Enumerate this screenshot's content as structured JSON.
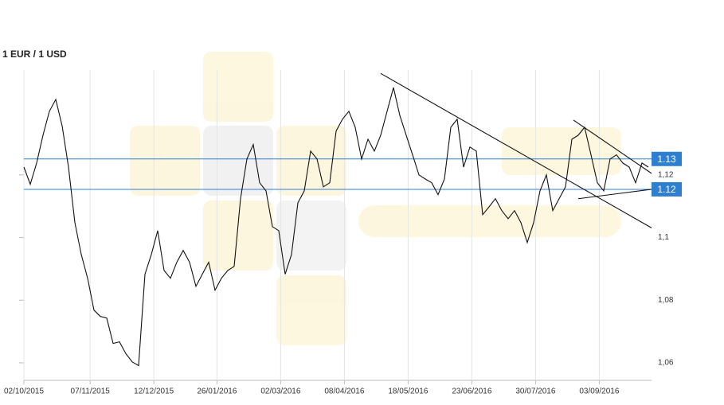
{
  "chart_data": {
    "type": "line",
    "title": "1 EUR / 1 USD",
    "xlim": [
      0,
      98.5
    ],
    "xticks": [
      {
        "value": 0,
        "label": "02/10/2015"
      },
      {
        "value": 10.4,
        "label": "07/11/2015"
      },
      {
        "value": 20.4,
        "label": "12/12/2015"
      },
      {
        "value": 30.3,
        "label": "26/01/2016"
      },
      {
        "value": 40.3,
        "label": "02/03/2016"
      },
      {
        "value": 50.3,
        "label": "08/04/2016"
      },
      {
        "value": 60.3,
        "label": "18/05/2016"
      },
      {
        "value": 70.3,
        "label": "23/06/2016"
      },
      {
        "value": 80.3,
        "label": "30/07/2016"
      },
      {
        "value": 90.3,
        "label": "03/09/2016"
      }
    ],
    "ylim": [
      1.0544,
      1.1535
    ],
    "yticks": [
      {
        "value": 1.06,
        "label": "1,06"
      },
      {
        "value": 1.08,
        "label": "1,08"
      },
      {
        "value": 1.1,
        "label": "1,1"
      },
      {
        "value": 1.12,
        "label": "1,12"
      }
    ],
    "grid": true,
    "series": [
      {
        "color": "#111111",
        "values": [
          1.1225,
          1.117,
          1.1238,
          1.1327,
          1.1403,
          1.1441,
          1.1357,
          1.1225,
          1.1048,
          1.0946,
          1.087,
          1.0768,
          1.0748,
          1.0743,
          1.0662,
          1.0667,
          1.0629,
          1.0603,
          1.0591,
          1.0883,
          1.0946,
          1.1022,
          1.0895,
          1.087,
          1.0921,
          1.0959,
          1.0921,
          1.0844,
          1.0883,
          1.0921,
          1.0832,
          1.087,
          1.0895,
          1.0908,
          1.1124,
          1.1251,
          1.1297,
          1.1175,
          1.1149,
          1.1035,
          1.1022,
          1.0883,
          1.0946,
          1.1111,
          1.1149,
          1.1276,
          1.1251,
          1.1162,
          1.1175,
          1.134,
          1.1378,
          1.1403,
          1.1352,
          1.1251,
          1.1314,
          1.1276,
          1.1327,
          1.1403,
          1.1479,
          1.139,
          1.1327,
          1.1264,
          1.12,
          1.1187,
          1.1175,
          1.1137,
          1.1187,
          1.1352,
          1.1378,
          1.1225,
          1.1289,
          1.1276,
          1.1073,
          1.1098,
          1.1124,
          1.1086,
          1.106,
          1.1086,
          1.1048,
          1.0984,
          1.1048,
          1.1149,
          1.12,
          1.1086,
          1.1124,
          1.1162,
          1.1314,
          1.1327,
          1.1352,
          1.1264,
          1.1175,
          1.1149,
          1.1251,
          1.1264,
          1.1238,
          1.1225,
          1.1175,
          1.1238,
          1.1225
        ]
      }
    ],
    "levels": [
      {
        "value": 1.1251,
        "label": "1.13",
        "color": "#2f7fd0"
      },
      {
        "value": 1.1154,
        "label": "1.12",
        "color": "#2f7fd0"
      }
    ],
    "trendlines": [
      {
        "x": [
          56,
          98.5
        ],
        "values": [
          1.1524,
          1.1031
        ]
      },
      {
        "x": [
          86.25,
          98.5
        ],
        "values": [
          1.1375,
          1.1205
        ]
      },
      {
        "x": [
          87,
          98.5
        ],
        "values": [
          1.1124,
          1.1154
        ]
      }
    ]
  }
}
